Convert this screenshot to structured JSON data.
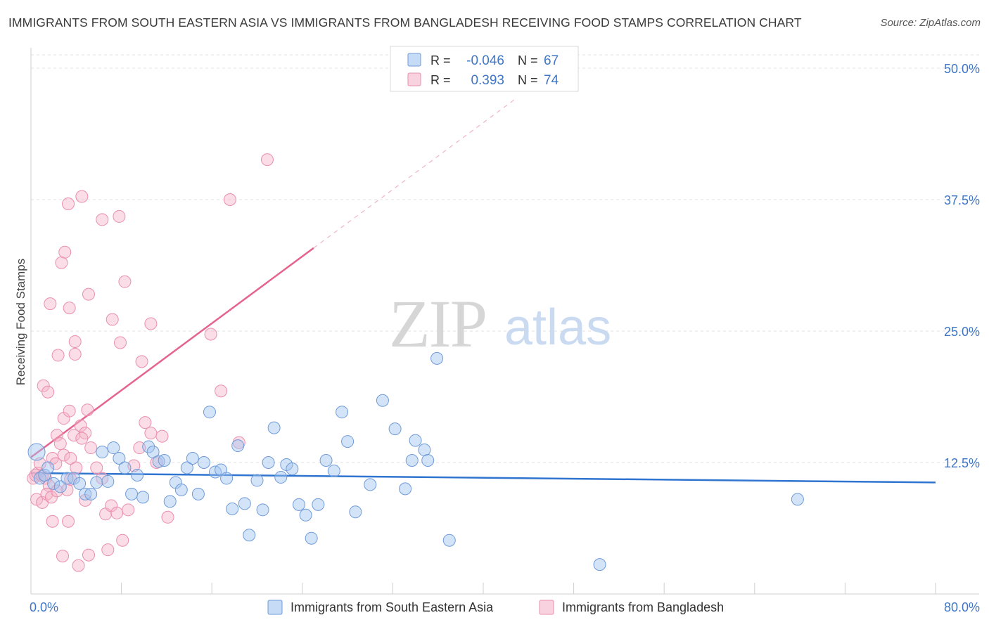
{
  "title": "IMMIGRANTS FROM SOUTH EASTERN ASIA VS IMMIGRANTS FROM BANGLADESH RECEIVING FOOD STAMPS CORRELATION CHART",
  "source": "Source: ZipAtlas.com",
  "watermark": {
    "zip": "ZIP",
    "atlas": "atlas"
  },
  "legend_box": {
    "rows": [
      {
        "r_label": "R =",
        "r_value": "-0.046",
        "n_label": "N =",
        "n_value": "67",
        "color": "#8fb4e6"
      },
      {
        "r_label": "R =",
        "r_value": "0.393",
        "n_label": "N =",
        "n_value": "74",
        "color": "#f2a8bf"
      }
    ]
  },
  "bottom_legend": [
    {
      "label": "Immigrants from South Eastern Asia",
      "color": "#8fb4e6"
    },
    {
      "label": "Immigrants from Bangladesh",
      "color": "#f2a8bf"
    }
  ],
  "colors": {
    "blue_fill": "rgba(160,195,240,0.45)",
    "blue_stroke": "#6f9bd9",
    "blue_line": "#2f74cf",
    "pink_fill": "rgba(244,180,200,0.45)",
    "pink_stroke": "#ea8fae",
    "pink_line": "#e5648d",
    "axis_value": "#3f76c6"
  },
  "chart_data": {
    "type": "scatter",
    "xlabel": "",
    "ylabel": "Receiving Food Stamps",
    "xlim": [
      0,
      80
    ],
    "ylim": [
      0,
      50
    ],
    "x_tick_labels": [
      "0.0%",
      "80.0%"
    ],
    "y_ticks": [
      {
        "value": 12.5,
        "label": "12.5%"
      },
      {
        "value": 25.0,
        "label": "25.0%"
      },
      {
        "value": 37.5,
        "label": "37.5%"
      },
      {
        "value": 50.0,
        "label": "50.0%"
      }
    ],
    "grid": true,
    "series": [
      {
        "name": "Immigrants from South Eastern Asia",
        "trend": {
          "x": [
            0,
            80
          ],
          "y": [
            11.5,
            10.6
          ],
          "style": "solid"
        },
        "points": [
          [
            0.5,
            13.5
          ],
          [
            0.8,
            11.0
          ],
          [
            1.2,
            11.3
          ],
          [
            1.5,
            12.0
          ],
          [
            2.0,
            10.5
          ],
          [
            2.6,
            10.2
          ],
          [
            3.2,
            11.0
          ],
          [
            3.8,
            11.0
          ],
          [
            4.3,
            10.5
          ],
          [
            4.8,
            9.5
          ],
          [
            5.3,
            9.5
          ],
          [
            5.8,
            10.6
          ],
          [
            6.3,
            13.5
          ],
          [
            6.8,
            10.7
          ],
          [
            7.3,
            13.9
          ],
          [
            7.8,
            12.9
          ],
          [
            8.3,
            12.0
          ],
          [
            8.9,
            9.5
          ],
          [
            9.4,
            11.3
          ],
          [
            9.9,
            9.2
          ],
          [
            10.4,
            14.0
          ],
          [
            10.8,
            13.5
          ],
          [
            11.3,
            12.6
          ],
          [
            11.8,
            12.7
          ],
          [
            12.3,
            8.8
          ],
          [
            12.8,
            10.6
          ],
          [
            13.3,
            9.9
          ],
          [
            13.8,
            12.0
          ],
          [
            14.3,
            12.9
          ],
          [
            14.8,
            9.5
          ],
          [
            15.3,
            12.5
          ],
          [
            15.8,
            17.3
          ],
          [
            16.3,
            11.6
          ],
          [
            16.8,
            11.8
          ],
          [
            17.3,
            11.0
          ],
          [
            17.8,
            8.1
          ],
          [
            18.3,
            14.1
          ],
          [
            18.9,
            8.6
          ],
          [
            19.3,
            5.6
          ],
          [
            20.0,
            10.8
          ],
          [
            20.5,
            8.0
          ],
          [
            21.0,
            12.5
          ],
          [
            21.5,
            15.8
          ],
          [
            22.1,
            11.1
          ],
          [
            22.6,
            12.3
          ],
          [
            23.1,
            11.9
          ],
          [
            23.7,
            8.5
          ],
          [
            24.3,
            7.5
          ],
          [
            24.8,
            5.3
          ],
          [
            25.4,
            8.5
          ],
          [
            26.1,
            12.7
          ],
          [
            26.8,
            11.7
          ],
          [
            27.5,
            17.3
          ],
          [
            28.0,
            14.5
          ],
          [
            28.7,
            7.8
          ],
          [
            30.0,
            10.4
          ],
          [
            31.1,
            18.4
          ],
          [
            32.2,
            15.7
          ],
          [
            33.1,
            10.0
          ],
          [
            33.7,
            12.7
          ],
          [
            34.0,
            14.6
          ],
          [
            34.8,
            13.7
          ],
          [
            35.1,
            12.7
          ],
          [
            35.9,
            22.4
          ],
          [
            37.0,
            5.1
          ],
          [
            50.3,
            2.8
          ],
          [
            67.8,
            9.0
          ]
        ]
      },
      {
        "name": "Immigrants from Bangladesh",
        "trend": {
          "x": [
            0,
            25
          ],
          "y": [
            13.0,
            32.9
          ],
          "style": "solid",
          "dash_to": [
            43,
            47.2
          ]
        },
        "points": [
          [
            0.2,
            11.0
          ],
          [
            0.4,
            11.3
          ],
          [
            0.6,
            11.5
          ],
          [
            0.8,
            12.4
          ],
          [
            1.0,
            11.2
          ],
          [
            1.3,
            11.0
          ],
          [
            1.6,
            10.3
          ],
          [
            1.9,
            12.9
          ],
          [
            2.2,
            12.4
          ],
          [
            0.5,
            9.0
          ],
          [
            1.0,
            8.7
          ],
          [
            1.4,
            9.5
          ],
          [
            1.8,
            9.2
          ],
          [
            1.9,
            6.9
          ],
          [
            2.3,
            15.1
          ],
          [
            2.6,
            14.3
          ],
          [
            2.9,
            13.2
          ],
          [
            3.2,
            9.9
          ],
          [
            3.5,
            12.9
          ],
          [
            4.0,
            12.0
          ],
          [
            4.4,
            16.0
          ],
          [
            4.8,
            15.3
          ],
          [
            5.3,
            13.9
          ],
          [
            5.8,
            12.0
          ],
          [
            6.3,
            11.0
          ],
          [
            6.6,
            7.6
          ],
          [
            7.1,
            8.4
          ],
          [
            7.6,
            7.7
          ],
          [
            8.1,
            5.1
          ],
          [
            8.6,
            8.0
          ],
          [
            9.1,
            12.2
          ],
          [
            9.6,
            13.9
          ],
          [
            10.1,
            16.3
          ],
          [
            10.6,
            15.3
          ],
          [
            11.1,
            12.5
          ],
          [
            11.6,
            15.0
          ],
          [
            12.1,
            7.3
          ],
          [
            1.1,
            19.8
          ],
          [
            1.5,
            19.2
          ],
          [
            2.4,
            22.7
          ],
          [
            2.9,
            16.7
          ],
          [
            3.4,
            17.4
          ],
          [
            3.8,
            15.1
          ],
          [
            4.5,
            14.8
          ],
          [
            5.0,
            17.5
          ],
          [
            1.7,
            27.6
          ],
          [
            2.7,
            31.5
          ],
          [
            3.3,
            37.1
          ],
          [
            4.5,
            37.8
          ],
          [
            6.3,
            35.6
          ],
          [
            7.8,
            35.9
          ],
          [
            7.2,
            26.1
          ],
          [
            7.9,
            23.9
          ],
          [
            8.3,
            29.7
          ],
          [
            9.8,
            22.1
          ],
          [
            10.6,
            25.7
          ],
          [
            3.4,
            27.2
          ],
          [
            3.9,
            24.0
          ],
          [
            3.9,
            22.8
          ],
          [
            5.1,
            28.5
          ],
          [
            3.0,
            32.5
          ],
          [
            17.6,
            37.5
          ],
          [
            20.9,
            41.3
          ],
          [
            15.9,
            24.7
          ],
          [
            16.8,
            19.3
          ],
          [
            18.4,
            14.4
          ],
          [
            2.8,
            3.6
          ],
          [
            4.2,
            2.7
          ],
          [
            5.1,
            3.7
          ],
          [
            6.8,
            4.2
          ],
          [
            3.3,
            6.9
          ],
          [
            4.8,
            8.9
          ],
          [
            2.3,
            9.8
          ],
          [
            3.5,
            10.9
          ]
        ]
      }
    ]
  }
}
